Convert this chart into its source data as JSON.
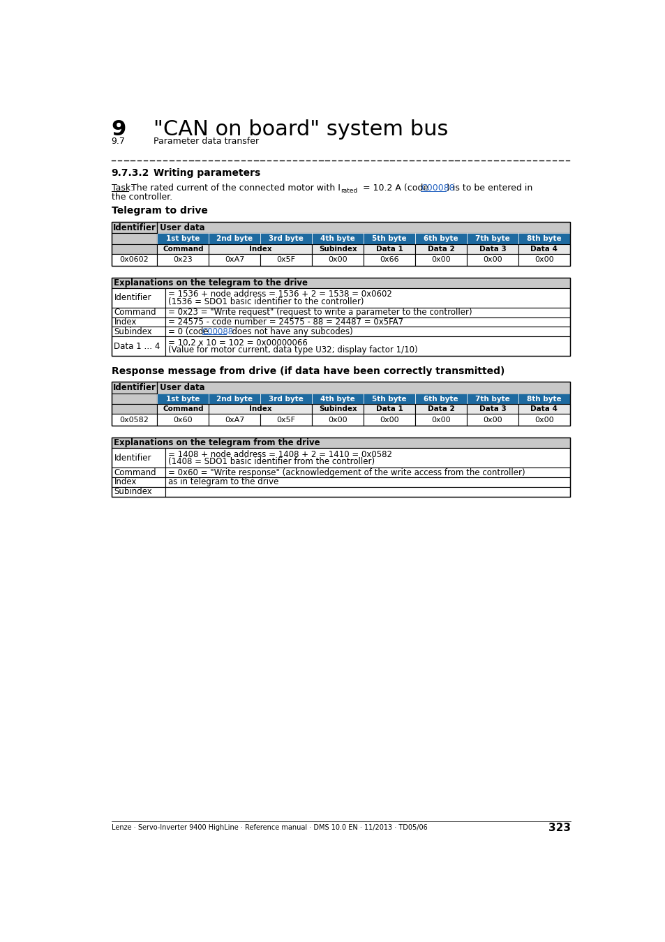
{
  "page_num": "323",
  "chapter_num": "9",
  "chapter_title": "\"CAN on board\" system bus",
  "section_num": "9.7",
  "section_title": "Parameter data transfer",
  "subsection_num": "9.7.3.2",
  "subsection_title": "Writing parameters",
  "telegram_drive_title": "Telegram to drive",
  "response_title": "Response message from drive (if data have been correctly transmitted)",
  "footer": "Lenze · Servo-Inverter 9400 HighLine · Reference manual · DMS 10.0 EN · 11/2013 · TD05/06",
  "blue_color": "#1e6aa0",
  "gray_header": "#c8c8c8",
  "light_gray": "#e8e8e8",
  "white": "#ffffff",
  "black": "#000000",
  "link_color": "#2060c0",
  "table1_byte_labels": [
    "1st byte",
    "2nd byte",
    "3rd byte",
    "4th byte",
    "5th byte",
    "6th byte",
    "7th byte",
    "8th byte"
  ],
  "table1_data_row": [
    "0x0602",
    "0x23",
    "0xA7",
    "0x5F",
    "0x00",
    "0x66",
    "0x00",
    "0x00",
    "0x00"
  ],
  "expl1_title": "Explanations on the telegram to the drive",
  "expl1_rows": [
    [
      "Identifier",
      "= 1536 + node address = 1536 + 2 = 1538 = 0x0602\n(1536 = SDO1 basic identifier to the controller)"
    ],
    [
      "Command",
      "= 0x23 = \"Write request\" (request to write a parameter to the controller)"
    ],
    [
      "Index",
      "= 24575 - code number = 24575 - 88 = 24487 = 0x5FA7"
    ],
    [
      "Subindex",
      "= 0 (code C00088  does not have any subcodes)"
    ],
    [
      "Data 1 … 4",
      "= 10,2 x 10 = 102 = 0x00000066\n(Value for motor current, data type U32; display factor 1/10)"
    ]
  ],
  "table2_data_row": [
    "0x0582",
    "0x60",
    "0xA7",
    "0x5F",
    "0x00",
    "0x00",
    "0x00",
    "0x00",
    "0x00"
  ],
  "expl2_title": "Explanations on the telegram from the drive",
  "expl2_rows": [
    [
      "Identifier",
      "= 1408 + node address = 1408 + 2 = 1410 = 0x0582\n(1408 = SDO1 basic identifier from the controller)"
    ],
    [
      "Command",
      "= 0x60 = \"Write response\" (acknowledgement of the write access from the controller)"
    ],
    [
      "Index",
      "as in telegram to the drive"
    ],
    [
      "Subindex",
      ""
    ]
  ]
}
